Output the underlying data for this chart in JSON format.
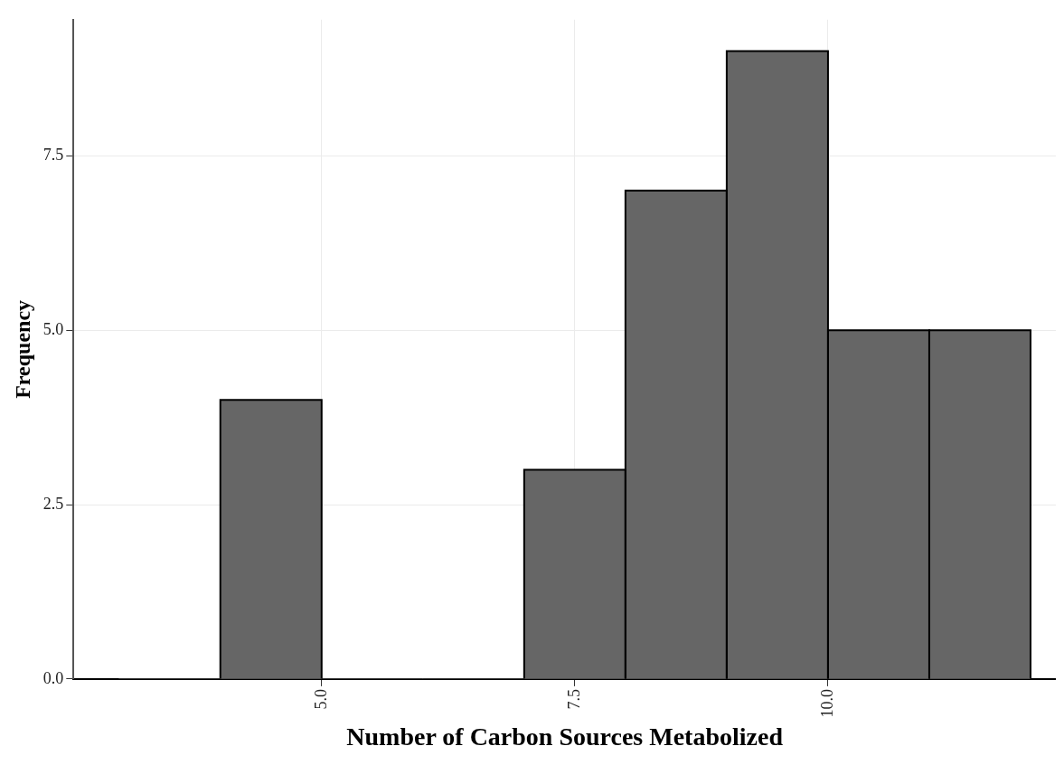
{
  "chart_data": {
    "type": "histogram",
    "xlabel": "Number of Carbon Sources Metabolized",
    "ylabel": "Frequency",
    "bins": [
      3,
      4,
      5,
      6,
      7,
      8,
      9,
      10,
      11,
      12
    ],
    "values": [
      0,
      4,
      0,
      0,
      3,
      7,
      9,
      5,
      5
    ],
    "color": "#666666",
    "xlim": [
      2.55,
      12.25
    ],
    "xticks": [
      {
        "value": 5,
        "label": "5.0"
      },
      {
        "value": 7.5,
        "label": "7.5"
      },
      {
        "value": 10,
        "label": "10.0"
      }
    ],
    "ylim": [
      0,
      9.45
    ],
    "yticks": [
      {
        "value": 0,
        "label": "0.0"
      },
      {
        "value": 2.5,
        "label": "2.5"
      },
      {
        "value": 5,
        "label": "5.0"
      },
      {
        "value": 7.5,
        "label": "7.5"
      }
    ],
    "grid": true
  }
}
